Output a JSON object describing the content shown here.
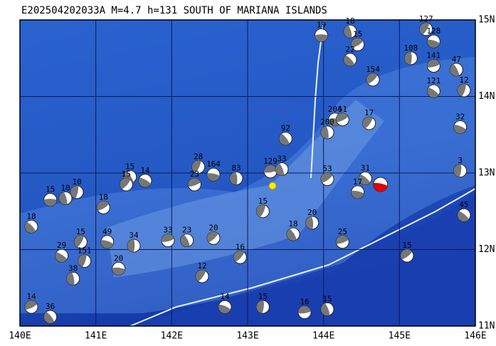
{
  "title": "E202504202033A M=4.7 h=131 SOUTH OF MARIANA ISLANDS",
  "map": {
    "lonlim": [
      140,
      146
    ],
    "latlim": [
      11,
      15
    ],
    "lon_ticks": [
      {
        "value": 140,
        "label": "140E"
      },
      {
        "value": 141,
        "label": "141E"
      },
      {
        "value": 142,
        "label": "142E"
      },
      {
        "value": 143,
        "label": "143E"
      },
      {
        "value": 144,
        "label": "144E"
      },
      {
        "value": 145,
        "label": "145E"
      },
      {
        "value": 146,
        "label": "146E"
      }
    ],
    "lat_ticks": [
      {
        "value": 11,
        "label": "11N"
      },
      {
        "value": 12,
        "label": "12N"
      },
      {
        "value": 13,
        "label": "13N"
      },
      {
        "value": 14,
        "label": "14N"
      },
      {
        "value": 15,
        "label": "15N"
      }
    ]
  },
  "main_event": {
    "lon": 144.75,
    "lat": 12.85
  },
  "events": [
    {
      "lon": 143.97,
      "lat": 14.8,
      "label": "19"
    },
    {
      "lon": 144.35,
      "lat": 14.85,
      "label": "18"
    },
    {
      "lon": 144.45,
      "lat": 14.68,
      "label": "15"
    },
    {
      "lon": 144.35,
      "lat": 14.48,
      "label": "22"
    },
    {
      "lon": 145.35,
      "lat": 14.88,
      "label": "127"
    },
    {
      "lon": 145.45,
      "lat": 14.72,
      "label": "128"
    },
    {
      "lon": 145.15,
      "lat": 14.5,
      "label": "108"
    },
    {
      "lon": 145.45,
      "lat": 14.4,
      "label": "141"
    },
    {
      "lon": 145.75,
      "lat": 14.35,
      "label": "47"
    },
    {
      "lon": 144.65,
      "lat": 14.22,
      "label": "154"
    },
    {
      "lon": 145.45,
      "lat": 14.07,
      "label": "121"
    },
    {
      "lon": 145.85,
      "lat": 14.08,
      "label": "12"
    },
    {
      "lon": 144.15,
      "lat": 13.7,
      "label": "204"
    },
    {
      "lon": 144.05,
      "lat": 13.53,
      "label": "200"
    },
    {
      "lon": 144.25,
      "lat": 13.7,
      "label": "51"
    },
    {
      "lon": 143.5,
      "lat": 13.45,
      "label": "92"
    },
    {
      "lon": 144.6,
      "lat": 13.65,
      "label": "17"
    },
    {
      "lon": 145.8,
      "lat": 13.6,
      "label": "32"
    },
    {
      "lon": 145.8,
      "lat": 13.03,
      "label": "3"
    },
    {
      "lon": 143.3,
      "lat": 13.02,
      "label": "129"
    },
    {
      "lon": 143.45,
      "lat": 13.05,
      "label": "33"
    },
    {
      "lon": 144.05,
      "lat": 12.92,
      "label": "53"
    },
    {
      "lon": 144.55,
      "lat": 12.93,
      "label": "31"
    },
    {
      "lon": 142.35,
      "lat": 13.08,
      "label": "28"
    },
    {
      "lon": 142.55,
      "lat": 12.98,
      "label": "164"
    },
    {
      "lon": 142.85,
      "lat": 12.93,
      "label": "83"
    },
    {
      "lon": 142.3,
      "lat": 12.85,
      "label": "23"
    },
    {
      "lon": 141.45,
      "lat": 12.95,
      "label": "15"
    },
    {
      "lon": 141.4,
      "lat": 12.85,
      "label": "15"
    },
    {
      "lon": 141.65,
      "lat": 12.9,
      "label": "14"
    },
    {
      "lon": 140.75,
      "lat": 12.75,
      "label": "10"
    },
    {
      "lon": 140.4,
      "lat": 12.65,
      "label": "15"
    },
    {
      "lon": 140.6,
      "lat": 12.67,
      "label": "10"
    },
    {
      "lon": 141.1,
      "lat": 12.55,
      "label": "18"
    },
    {
      "lon": 140.15,
      "lat": 12.3,
      "label": "18"
    },
    {
      "lon": 140.8,
      "lat": 12.1,
      "label": "15"
    },
    {
      "lon": 141.15,
      "lat": 12.1,
      "label": "49"
    },
    {
      "lon": 141.5,
      "lat": 12.05,
      "label": "34"
    },
    {
      "lon": 141.95,
      "lat": 12.12,
      "label": "33"
    },
    {
      "lon": 142.2,
      "lat": 12.12,
      "label": "23"
    },
    {
      "lon": 142.55,
      "lat": 12.15,
      "label": "20"
    },
    {
      "lon": 140.55,
      "lat": 11.92,
      "label": "29"
    },
    {
      "lon": 140.85,
      "lat": 11.85,
      "label": "151"
    },
    {
      "lon": 141.3,
      "lat": 11.75,
      "label": "20"
    },
    {
      "lon": 140.7,
      "lat": 11.62,
      "label": "38"
    },
    {
      "lon": 140.15,
      "lat": 11.25,
      "label": "14"
    },
    {
      "lon": 140.4,
      "lat": 11.12,
      "label": "36"
    },
    {
      "lon": 142.4,
      "lat": 11.65,
      "label": "12"
    },
    {
      "lon": 142.7,
      "lat": 11.25,
      "label": "14"
    },
    {
      "lon": 143.2,
      "lat": 11.25,
      "label": "15"
    },
    {
      "lon": 143.75,
      "lat": 11.18,
      "label": "16"
    },
    {
      "lon": 144.05,
      "lat": 11.22,
      "label": "15"
    },
    {
      "lon": 145.1,
      "lat": 11.92,
      "label": "15"
    },
    {
      "lon": 145.85,
      "lat": 12.45,
      "label": "45"
    },
    {
      "lon": 143.2,
      "lat": 12.5,
      "label": "15"
    },
    {
      "lon": 144.45,
      "lat": 12.75,
      "label": "17"
    },
    {
      "lon": 143.85,
      "lat": 12.35,
      "label": "20"
    },
    {
      "lon": 144.25,
      "lat": 12.1,
      "label": "25"
    },
    {
      "lon": 143.6,
      "lat": 12.2,
      "label": "18"
    },
    {
      "lon": 142.9,
      "lat": 11.9,
      "label": "16"
    }
  ]
}
